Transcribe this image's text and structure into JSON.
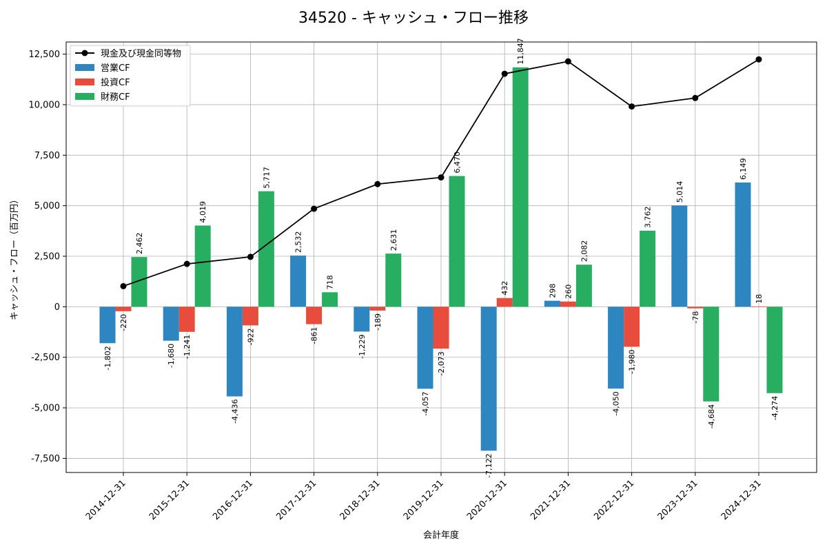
{
  "chart_data": {
    "type": "bar",
    "title": "34520 - キャッシュ・フロー推移",
    "xlabel": "会計年度",
    "ylabel": "キャッシュ・フロー（百万円）",
    "ylim": [
      -8200,
      13100
    ],
    "yticks": [
      -7500,
      -5000,
      -2500,
      0,
      2500,
      5000,
      7500,
      10000,
      12500
    ],
    "ytick_labels": [
      "-7,500",
      "-5,000",
      "-2,500",
      "0",
      "2,500",
      "5,000",
      "7,500",
      "10,000",
      "12,500"
    ],
    "grid": true,
    "legend_position": "top-left",
    "categories": [
      "2014-12-31",
      "2015-12-31",
      "2016-12-31",
      "2017-12-31",
      "2018-12-31",
      "2019-12-31",
      "2020-12-31",
      "2021-12-31",
      "2022-12-31",
      "2023-12-31",
      "2024-12-31"
    ],
    "series": [
      {
        "name": "営業CF",
        "kind": "bar",
        "color": "#2e86c1",
        "values": [
          -1802,
          -1680,
          -4436,
          2532,
          -1229,
          -4057,
          -7122,
          298,
          -4050,
          5014,
          6149
        ],
        "labels": [
          "-1,802",
          "-1,680",
          "-4,436",
          "2,532",
          "-1,229",
          "-4,057",
          "-7,122",
          "298",
          "-4,050",
          "5,014",
          "6,149"
        ]
      },
      {
        "name": "投資CF",
        "kind": "bar",
        "color": "#e74c3c",
        "values": [
          -220,
          -1241,
          -922,
          -861,
          -189,
          -2073,
          432,
          260,
          -1980,
          -78,
          18
        ],
        "labels": [
          "-220",
          "-1,241",
          "-922",
          "-861",
          "-189",
          "-2,073",
          "432",
          "260",
          "-1,980",
          "-78",
          "18"
        ]
      },
      {
        "name": "財務CF",
        "kind": "bar",
        "color": "#27ae60",
        "values": [
          2462,
          4019,
          5717,
          718,
          2631,
          6470,
          11847,
          2082,
          3762,
          -4684,
          -4274
        ],
        "labels": [
          "2,462",
          "4,019",
          "5,717",
          "718",
          "2,631",
          "6,470",
          "11,847",
          "2,082",
          "3,762",
          "-4,684",
          "-4,274"
        ]
      },
      {
        "name": "現金及び現金同等物",
        "kind": "line",
        "color": "#000000",
        "values": [
          1020,
          2120,
          2470,
          4850,
          6070,
          6400,
          11530,
          12140,
          9910,
          10330,
          12240
        ]
      }
    ]
  }
}
